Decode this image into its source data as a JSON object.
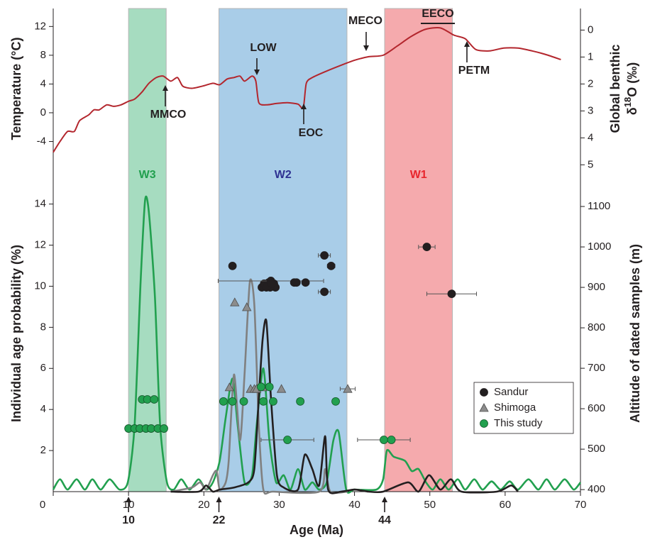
{
  "chart_data": [
    {
      "type": "line",
      "xlim": [
        0,
        70
      ],
      "ylim": [
        -7.8,
        14.5
      ],
      "yticks": [
        -4,
        0,
        4,
        8,
        12
      ],
      "ylabel": "Temperature (°C)",
      "y2lim": [
        -0.8,
        5.15
      ],
      "y2_inverted": true,
      "y2ticks": [
        0,
        1,
        2,
        3,
        4,
        5
      ],
      "y2label": [
        "Global benthic",
        "δ",
        "18",
        "O (‰)"
      ],
      "annotations": [
        "MMCO",
        "LOW",
        "EOC",
        "MECO",
        "EECO",
        "PETM"
      ],
      "series": [
        {
          "color": "#b3262d",
          "x": [
            0,
            0.9,
            1.9,
            2.8,
            3.5,
            4.7,
            5.4,
            6.1,
            7.1,
            8,
            9,
            10,
            10.8,
            11.8,
            12.7,
            13.7,
            14.6,
            15.6,
            16.5,
            17.2,
            18.4,
            19.8,
            21.2,
            22.1,
            23.1,
            24,
            24.8,
            25.4,
            26.4,
            26.9,
            27.3,
            28.3,
            29.7,
            31.1,
            32.5,
            33.2,
            33.6,
            34.4,
            36.3,
            38.2,
            40,
            41.9,
            43.8,
            45.7,
            47.5,
            49.4,
            51.4,
            53.2,
            54.7,
            56.1,
            57.9,
            59.8,
            61.7,
            63.6,
            65.4,
            67.4
          ],
          "values": [
            -5.5,
            -4,
            -2.6,
            -2.6,
            -1.1,
            -0.3,
            0.4,
            0.4,
            1.1,
            0.9,
            1.1,
            1.6,
            1.9,
            2.9,
            4.1,
            4.9,
            5.1,
            4.4,
            4.9,
            3.7,
            3.4,
            3.7,
            4.1,
            3.9,
            4.7,
            4.9,
            5.1,
            4.4,
            5.1,
            4.4,
            1.4,
            1.1,
            1.3,
            1.4,
            1.2,
            0.7,
            4.1,
            4.9,
            5.8,
            6.6,
            7.3,
            7.8,
            8,
            9.3,
            10.6,
            11.6,
            11.8,
            10.8,
            10.3,
            8.8,
            8.6,
            9,
            9,
            8.6,
            8.1,
            7.4
          ]
        }
      ]
    },
    {
      "type": "combo",
      "xlim": [
        0,
        70
      ],
      "xticks": [
        0,
        10,
        20,
        30,
        40,
        50,
        60,
        70
      ],
      "xlabel": "Age (Ma)",
      "ylim": [
        0,
        15.3
      ],
      "yticks": [
        2,
        4,
        6,
        8,
        10,
        12,
        14
      ],
      "ylabel": "Individual age probability (%)",
      "y2lim": [
        395,
        1172
      ],
      "y2ticks": [
        400,
        500,
        600,
        700,
        800,
        900,
        1000,
        1100
      ],
      "y2label": "Altitude of dated samples (m)",
      "age_markers": [
        10,
        22,
        44
      ],
      "legend": "lower right",
      "bands": [
        {
          "label": "W3",
          "from": 10,
          "to": 15,
          "color": "#a6dcc0",
          "label_color": "#22a04f"
        },
        {
          "label": "W2",
          "from": 22,
          "to": 39,
          "color": "#a9cde8",
          "label_color": "#2e3192"
        },
        {
          "label": "W1",
          "from": 44,
          "to": 53,
          "color": "#f5aaad",
          "label_color": "#e8262d"
        }
      ],
      "curves": [
        {
          "color": "#22a04f",
          "x": [
            0,
            0.9,
            1.9,
            3.1,
            4.2,
            5.2,
            6.3,
            7.5,
            8.8,
            9.9,
            10.8,
            11.6,
            12.2,
            12.7,
            13.5,
            14.2,
            15.1,
            16,
            17,
            18.1,
            19.3,
            20.3,
            21.2,
            22.1,
            22.9,
            23.8,
            24.5,
            25.4,
            26.4,
            27,
            27.9,
            28.7,
            29.6,
            30.6,
            31.5,
            32.5,
            33.4,
            34.4,
            35.3,
            36.3,
            37.2,
            37.9,
            38.9,
            40,
            42.9,
            43.8,
            44.3,
            45.2,
            46.7,
            47.6,
            48.5,
            49.5,
            50.4,
            51.4,
            52.5,
            53.7,
            54.7,
            55.9,
            57,
            58.2,
            59.4,
            60.6,
            61.7,
            63.1,
            64.4,
            65.5,
            66.6,
            67.9,
            69.1,
            70
          ],
          "values": [
            0.1,
            0.6,
            0.1,
            0.6,
            0.1,
            0.6,
            0.1,
            0.6,
            0.1,
            0.45,
            3.2,
            10.2,
            14.2,
            13.6,
            9.5,
            3.2,
            0.45,
            0.1,
            0.6,
            0.1,
            0.6,
            0.1,
            0.45,
            1.5,
            3.6,
            5.5,
            3.2,
            0.45,
            0.8,
            3.2,
            6,
            2.5,
            0.45,
            0.8,
            0.1,
            1.1,
            0.1,
            0.45,
            0.1,
            0.45,
            2.5,
            2.9,
            0.1,
            0.1,
            0.1,
            0.6,
            2,
            1.7,
            1.5,
            1,
            1.1,
            0.45,
            0.1,
            0.6,
            0.1,
            0.6,
            0.1,
            0.6,
            0.1,
            0.5,
            0.1,
            0.5,
            0.1,
            0.6,
            0.1,
            0.6,
            0.1,
            0.6,
            0.1,
            0.45
          ]
        },
        {
          "color": "#808080",
          "x": [
            15.6,
            18.4,
            19.5,
            20.3,
            21.2,
            21.7,
            22.1,
            22.9,
            23.3,
            24,
            24.8,
            25.4,
            26.1,
            26.7,
            27.3,
            27.9,
            29.2,
            35.3,
            36.1,
            36.8,
            39.1
          ],
          "values": [
            0,
            0.2,
            0.45,
            0.1,
            0.8,
            1,
            0.1,
            0.45,
            1.5,
            5.7,
            2.5,
            5.7,
            10.2,
            9.1,
            3.2,
            0.1,
            0,
            0,
            1.1,
            0,
            0
          ]
        },
        {
          "color": "#231f20",
          "x": [
            15.6,
            19.3,
            20.3,
            21.2,
            22.1,
            24,
            25.9,
            26.7,
            27.3,
            27.8,
            28.3,
            28.9,
            29.7,
            30.6,
            32.5,
            33.4,
            34.4,
            35.3,
            36.1,
            36.5,
            38.2,
            40,
            41.9,
            43.8,
            47.1,
            48.5,
            49.9,
            51.4,
            52.8,
            54.2,
            58.9,
            60.8,
            61.7
          ],
          "values": [
            0,
            0,
            0.3,
            0,
            0.1,
            0.2,
            0.45,
            1.1,
            4.6,
            7.4,
            8.3,
            4.6,
            0.8,
            0.2,
            0.1,
            1.8,
            1.1,
            0.3,
            2.7,
            0.1,
            0,
            0.1,
            0,
            0,
            0.45,
            0,
            0.8,
            0.1,
            0.6,
            0,
            0,
            0.3,
            0
          ]
        }
      ],
      "series": [
        {
          "name": "Sandur",
          "marker": "circle",
          "axis": "y2",
          "color": "#231f20",
          "x": [
            23.8,
            36,
            36.9,
            27.7,
            28,
            28.6,
            28.9,
            29.3,
            29.5,
            28.8,
            28.3,
            29,
            32,
            32.3,
            33.5,
            36,
            49.6,
            52.9
          ],
          "values": [
            953,
            979,
            953,
            900,
            909,
            912,
            916,
            909,
            900,
            900,
            900,
            909,
            912,
            912,
            912,
            889,
            1000,
            884
          ],
          "errors": [
            null,
            0.8,
            0.5,
            null,
            null,
            null,
            7,
            null,
            null,
            null,
            null,
            null,
            null,
            null,
            null,
            0.8,
            1.1,
            3.3
          ]
        },
        {
          "name": "Shimoga",
          "marker": "triangle",
          "axis": "y2",
          "color": "#8c8c8c",
          "x": [
            24.1,
            25.7,
            23.4,
            26.2,
            26.7,
            27,
            27.8,
            30.3,
            39.1
          ],
          "values": [
            863,
            851,
            653,
            649,
            649,
            649,
            653,
            649,
            649
          ],
          "errors": [
            null,
            null,
            null,
            null,
            null,
            null,
            null,
            null,
            1
          ]
        },
        {
          "name": "This study",
          "marker": "circle",
          "axis": "y2",
          "color": "#22a04f",
          "x": [
            11.8,
            12.5,
            13.4,
            10,
            10.8,
            11.5,
            12.3,
            13,
            13.9,
            14.7,
            22.6,
            23.8,
            25.3,
            27.9,
            29.2,
            32.8,
            37.5,
            27.6,
            28.7,
            31.1,
            43.9,
            44.9
          ],
          "values": [
            623,
            623,
            623,
            551,
            551,
            551,
            551,
            551,
            551,
            551,
            618,
            618,
            618,
            618,
            618,
            618,
            618,
            654,
            654,
            523,
            523,
            523
          ],
          "errors": [
            null,
            null,
            null,
            null,
            null,
            null,
            null,
            null,
            null,
            null,
            null,
            null,
            null,
            null,
            null,
            null,
            null,
            null,
            null,
            3.5,
            3.5,
            null
          ]
        }
      ]
    }
  ]
}
